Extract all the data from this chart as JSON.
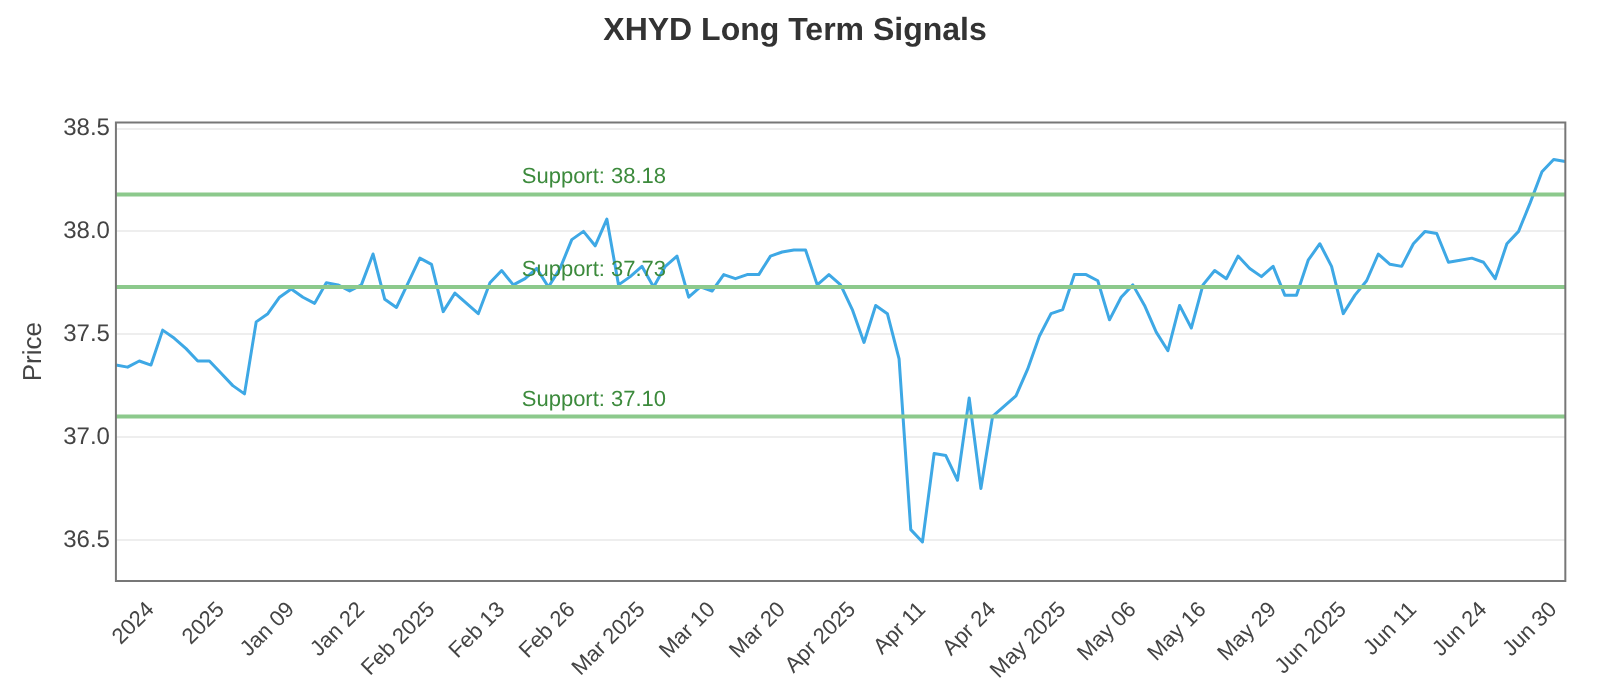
{
  "chart_data": {
    "type": "line",
    "title": "XHYD Long Term Signals",
    "ylabel": "Price",
    "categories": [
      null,
      null,
      null,
      "2024",
      null,
      null,
      null,
      null,
      null,
      "2025",
      null,
      null,
      null,
      null,
      null,
      "Jan 09",
      null,
      null,
      null,
      null,
      null,
      "Jan 22",
      null,
      null,
      null,
      null,
      null,
      "Feb 2025",
      null,
      null,
      null,
      null,
      null,
      "Feb 13",
      null,
      null,
      null,
      null,
      null,
      "Feb 26",
      null,
      null,
      null,
      null,
      null,
      "Mar 2025",
      null,
      null,
      null,
      null,
      null,
      "Mar 10",
      null,
      null,
      null,
      null,
      null,
      "Mar 20",
      null,
      null,
      null,
      null,
      null,
      "Apr 2025",
      null,
      null,
      null,
      null,
      null,
      "Apr 11",
      null,
      null,
      null,
      null,
      null,
      "Apr 24",
      null,
      null,
      null,
      null,
      null,
      "May 2025",
      null,
      null,
      null,
      null,
      null,
      "May 06",
      null,
      null,
      null,
      null,
      null,
      "May 16",
      null,
      null,
      null,
      null,
      null,
      "May 29",
      null,
      null,
      null,
      null,
      null,
      "Jun 2025",
      null,
      null,
      null,
      null,
      null,
      "Jun 11",
      null,
      null,
      null,
      null,
      null,
      "Jun 24",
      null,
      null,
      null,
      null,
      null,
      "Jun 30",
      null
    ],
    "series": [
      {
        "color": "#3ea8e5",
        "values": [
          37.35,
          37.34,
          37.37,
          37.35,
          37.52,
          37.48,
          37.43,
          37.37,
          37.37,
          37.31,
          37.25,
          37.21,
          37.56,
          37.6,
          37.68,
          37.72,
          37.68,
          37.65,
          37.75,
          37.74,
          37.71,
          37.74,
          37.89,
          37.67,
          37.63,
          37.75,
          37.87,
          37.84,
          37.61,
          37.7,
          37.65,
          37.6,
          37.75,
          37.81,
          37.74,
          37.77,
          37.82,
          37.73,
          37.82,
          37.96,
          38.0,
          37.93,
          38.06,
          37.74,
          37.78,
          37.83,
          37.73,
          37.83,
          37.88,
          37.68,
          37.73,
          37.71,
          37.79,
          37.77,
          37.79,
          37.79,
          37.88,
          37.9,
          37.91,
          37.91,
          37.74,
          37.79,
          37.74,
          37.62,
          37.46,
          37.64,
          37.6,
          37.38,
          36.55,
          36.49,
          36.92,
          36.91,
          36.79,
          37.19,
          36.75,
          37.1,
          37.15,
          37.2,
          37.33,
          37.49,
          37.6,
          37.62,
          37.79,
          37.79,
          37.76,
          37.57,
          37.68,
          37.74,
          37.64,
          37.51,
          37.42,
          37.64,
          37.53,
          37.74,
          37.81,
          37.77,
          37.88,
          37.82,
          37.78,
          37.83,
          37.69,
          37.69,
          37.86,
          37.94,
          37.83,
          37.6,
          37.69,
          37.76,
          37.89,
          37.84,
          37.83,
          37.94,
          38.0,
          37.99,
          37.85,
          37.86,
          37.87,
          37.85,
          37.77,
          37.94,
          38.0,
          38.14,
          38.29,
          38.35,
          38.34
        ]
      }
    ],
    "ylim": [
      36.3,
      38.53
    ],
    "yticks": [
      36.5,
      {
        "value": 37,
        "label": "37.0"
      },
      37.5,
      {
        "value": 38,
        "label": "38.0"
      },
      38.5
    ],
    "ref_lines": [
      {
        "axis": "y",
        "value": 38.18,
        "label": "Support: 38.18",
        "color": "#8cc98c"
      },
      {
        "axis": "y",
        "value": 37.73,
        "label": "Support: 37.73",
        "color": "#8cc98c"
      },
      {
        "axis": "y",
        "value": 37.1,
        "label": "Support: 37.10",
        "color": "#8cc98c"
      }
    ],
    "grid": "y",
    "legend": false,
    "marker": "none",
    "line_style": "solid"
  }
}
